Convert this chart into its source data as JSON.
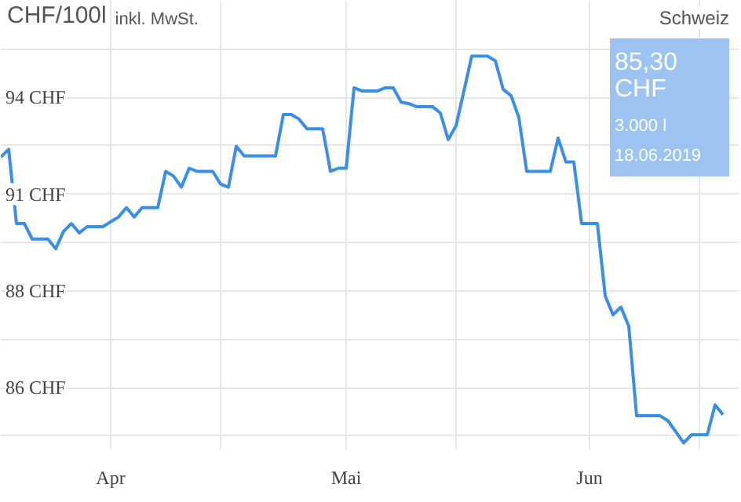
{
  "chart_data": {
    "type": "line",
    "title": "CHF/100l",
    "subtitle": "inkl. MwSt.",
    "annotations": [
      "Schweiz",
      "85,30\nCHF\n3.000 l\n18.06.2019"
    ],
    "x": [
      "2019-03-18",
      "2019-03-19",
      "2019-03-20",
      "2019-03-21",
      "2019-03-22",
      "2019-03-24",
      "2019-03-25",
      "2019-03-26",
      "2019-03-27",
      "2019-03-28",
      "2019-03-29",
      "2019-03-31",
      "2019-04-02",
      "2019-04-03",
      "2019-04-04",
      "2019-04-05",
      "2019-04-07",
      "2019-04-08",
      "2019-04-09",
      "2019-04-10",
      "2019-04-11",
      "2019-04-12",
      "2019-04-14",
      "2019-04-15",
      "2019-04-16",
      "2019-04-17",
      "2019-04-18",
      "2019-04-22",
      "2019-04-23",
      "2019-04-24",
      "2019-04-25",
      "2019-04-26",
      "2019-04-28",
      "2019-04-29",
      "2019-04-30",
      "2019-05-01",
      "2019-05-02",
      "2019-05-03",
      "2019-05-05",
      "2019-05-06",
      "2019-05-07",
      "2019-05-08",
      "2019-05-09",
      "2019-05-10",
      "2019-05-12",
      "2019-05-13",
      "2019-05-14",
      "2019-05-15",
      "2019-05-17",
      "2019-05-19",
      "2019-05-20",
      "2019-05-21",
      "2019-05-22",
      "2019-05-23",
      "2019-05-24",
      "2019-05-27",
      "2019-05-28",
      "2019-05-29",
      "2019-05-30",
      "2019-05-31",
      "2019-06-02",
      "2019-06-03",
      "2019-06-04",
      "2019-06-05",
      "2019-06-06",
      "2019-06-07",
      "2019-06-10",
      "2019-06-11",
      "2019-06-13",
      "2019-06-14",
      "2019-06-16",
      "2019-06-17",
      "2019-06-18"
    ],
    "series": [
      {
        "color": "#3a8ee6",
        "values": [
          91.96,
          92.16,
          90.24,
          90.24,
          89.84,
          89.84,
          89.59,
          90.04,
          90.24,
          90.0,
          90.16,
          90.16,
          90.41,
          90.65,
          90.41,
          90.65,
          90.65,
          91.59,
          91.47,
          91.18,
          91.67,
          91.59,
          91.59,
          91.26,
          91.18,
          92.24,
          91.99,
          91.99,
          93.06,
          93.06,
          92.94,
          92.69,
          92.69,
          91.59,
          91.67,
          91.67,
          93.75,
          93.67,
          93.67,
          93.75,
          93.75,
          93.38,
          93.34,
          93.26,
          93.26,
          93.1,
          92.41,
          92.77,
          94.57,
          94.57,
          94.45,
          93.71,
          93.55,
          92.98,
          91.59,
          91.59,
          92.45,
          91.83,
          91.83,
          90.24,
          90.24,
          88.37,
          87.88,
          88.08,
          87.59,
          85.27,
          85.27,
          85.14,
          84.57,
          84.78,
          84.78,
          85.55,
          85.3
        ]
      }
    ],
    "xlim": [
      "2019-03-18",
      "2019-06-20"
    ],
    "xticks": [
      {
        "value": "2019-04-01",
        "label": "Apr"
      },
      {
        "value": "2019-04-15",
        "label": null
      },
      {
        "value": "2019-05-01",
        "label": "Mai"
      },
      {
        "value": "2019-05-15",
        "label": null
      },
      {
        "value": "2019-06-01",
        "label": "Jun"
      },
      {
        "value": "2019-06-15",
        "label": null
      }
    ],
    "ylim": [
      84.4,
      96.0
    ],
    "yticks": [
      {
        "value": 84.75,
        "label": null
      },
      {
        "value": 86,
        "label": "86 CHF"
      },
      {
        "value": 87.25,
        "label": null
      },
      {
        "value": 88.5,
        "label": "88 CHF"
      },
      {
        "value": 89.75,
        "label": null
      },
      {
        "value": 91,
        "label": "91 CHF"
      },
      {
        "value": 92.25,
        "label": null
      },
      {
        "value": 93.5,
        "label": "94 CHF"
      },
      {
        "value": 94.75,
        "label": null
      }
    ],
    "grid": true,
    "marker": "none",
    "line_style": "solid"
  }
}
